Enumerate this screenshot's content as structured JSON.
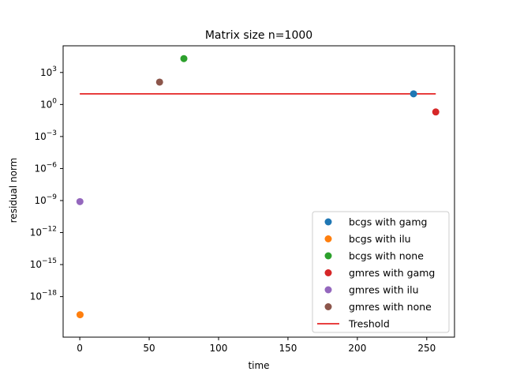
{
  "chart_data": {
    "type": "scatter",
    "title": "Matrix size n=1000",
    "xlabel": "time",
    "ylabel": "residual norm",
    "yscale": "log",
    "xlim": [
      -12,
      270
    ],
    "ylim_log10": [
      -21.8,
      5.5
    ],
    "xticks": [
      0,
      50,
      100,
      150,
      200,
      250
    ],
    "yticks_exp": [
      3,
      0,
      -3,
      -6,
      -9,
      -12,
      -15,
      -18
    ],
    "grid": false,
    "legend_position": "lower-right",
    "series": [
      {
        "name": "bcgs with gamg",
        "color": "#1f77b4",
        "marker": "circle",
        "x": 240.5,
        "log10_y": 1.0
      },
      {
        "name": "bcgs with ilu",
        "color": "#ff7f0e",
        "marker": "circle",
        "x": 0.2,
        "log10_y": -19.7
      },
      {
        "name": "bcgs with none",
        "color": "#2ca02c",
        "marker": "circle",
        "x": 75.0,
        "log10_y": 4.3
      },
      {
        "name": "gmres with gamg",
        "color": "#d62728",
        "marker": "circle",
        "x": 256.5,
        "log10_y": -0.7
      },
      {
        "name": "gmres with ilu",
        "color": "#9467bd",
        "marker": "circle",
        "x": 0.1,
        "log10_y": -9.1
      },
      {
        "name": "gmres with none",
        "color": "#8c564b",
        "marker": "circle",
        "x": 57.5,
        "log10_y": 2.1
      }
    ],
    "threshold": {
      "name": "Treshold",
      "color": "#e00000",
      "x": [
        0,
        256.5
      ],
      "log10_y": 1.0
    }
  }
}
